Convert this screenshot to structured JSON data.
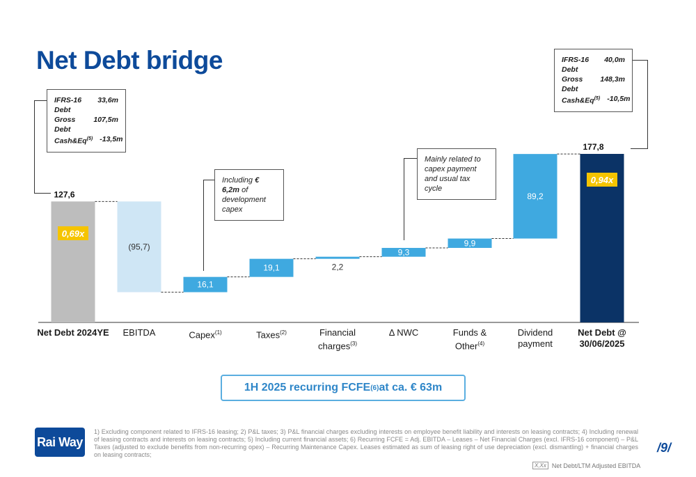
{
  "title": "Net Debt bridge",
  "left_box": {
    "rows": [
      {
        "label": "IFRS-16 Debt",
        "value": "33,6m"
      },
      {
        "label": "Gross Debt",
        "value": "107,5m"
      },
      {
        "label": "Cash&Eq",
        "sup": "(5)",
        "value": "-13,5m"
      }
    ]
  },
  "right_box": {
    "rows": [
      {
        "label": "IFRS-16 Debt",
        "value": "40,0m"
      },
      {
        "label": "Gross Debt",
        "value": "148,3m"
      },
      {
        "label": "Cash&Eq",
        "sup": "(5)",
        "value": "-10,5m"
      }
    ]
  },
  "callouts": {
    "capex_pre": "Including ",
    "capex_bold": "€ 6,2m",
    "capex_post": " of development capex",
    "nwc": "Mainly related to capex payment and usual tax cycle"
  },
  "chart_data": {
    "type": "bar",
    "subtype": "waterfall",
    "categories": [
      "Net Debt 2024YE",
      "EBITDA",
      "Capex",
      "Taxes",
      "Financial charges",
      "Δ NWC",
      "Funds & Other",
      "Dividend payment",
      "Net Debt @ 30/06/2025"
    ],
    "category_sups": [
      "",
      "",
      "(1)",
      "(2)",
      "(3)",
      "",
      "(4)",
      "",
      ""
    ],
    "category_lines": [
      [
        "Net Debt 2024YE"
      ],
      [
        "EBITDA"
      ],
      [
        "Capex"
      ],
      [
        "Taxes"
      ],
      [
        "Financial",
        "charges"
      ],
      [
        "Δ NWC"
      ],
      [
        "Funds &",
        "Other"
      ],
      [
        "Dividend",
        "payment"
      ],
      [
        "Net Debt @",
        "30/06/2025"
      ]
    ],
    "values": [
      127.6,
      -95.7,
      16.1,
      19.1,
      2.2,
      9.3,
      9.9,
      89.2,
      177.8
    ],
    "labels": [
      "127,6",
      "(95,7)",
      "16,1",
      "19,1",
      "2,2",
      "9,3",
      "9,9",
      "89,2",
      "177,8"
    ],
    "kinds": [
      "total",
      "decrease",
      "increase",
      "increase",
      "increase",
      "increase",
      "increase",
      "increase",
      "total"
    ],
    "leverage_badges": [
      {
        "index": 0,
        "text": "0,69x"
      },
      {
        "index": 8,
        "text": "0,94x"
      }
    ],
    "colors": {
      "start_total": "#bdbdbd",
      "decrease": "#cfe6f5",
      "increase": "#3fa9e0",
      "end_total": "#0b3366",
      "badge": "#f5c400"
    }
  },
  "banner": {
    "pre": "1H 2025 recurring FCFE",
    "sup": "(6)",
    "post": " at ca. € 63m"
  },
  "logo": "Rai Way",
  "footnotes": "1) Excluding component related to IFRS-16 leasing;        2) P&L taxes;        3) P&L financial charges excluding interests on employee benefit liability and interests on leasing contracts; 4) Including renewal of leasing contracts and interests on leasing contracts;     5) Including current financial assets;     6) Recurring FCFE = Adj. EBITDA – Leases – Net Financial Charges (excl. IFRS-16 component) – P&L Taxes (adjusted to exclude benefits from non-recurring opex) – Recurring Maintenance Capex. Leases estimated as sum of leasing right of use depreciation (excl. dismantling) + financial charges on leasing contracts;",
  "page_number": "9",
  "legend_note": {
    "symbol": "X,Xx",
    "text": "Net Debt/LTM Adjusted EBITDA"
  }
}
